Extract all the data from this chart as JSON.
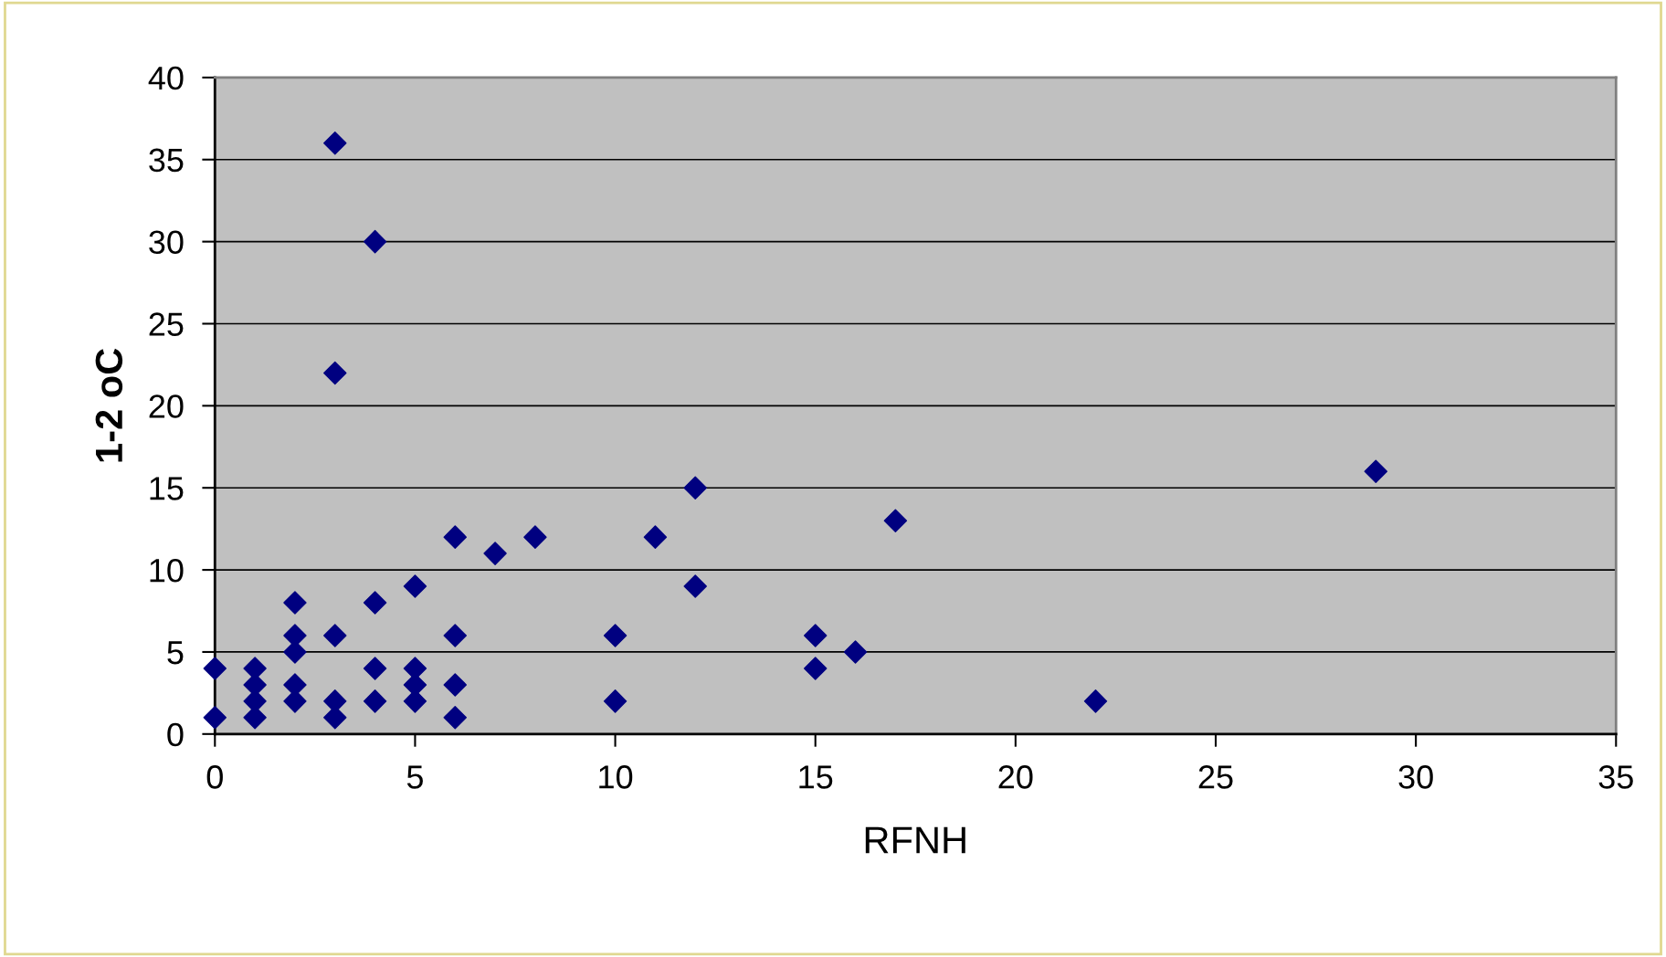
{
  "chart_data": {
    "type": "scatter",
    "xlabel": "RFNH",
    "ylabel": "1-2 oC",
    "series": [
      {
        "color": "#000080",
        "x": [
          0,
          0,
          1,
          1,
          1,
          1,
          2,
          2,
          2,
          2,
          2,
          3,
          3,
          3,
          3,
          3,
          4,
          4,
          4,
          4,
          5,
          5,
          5,
          5,
          6,
          6,
          6,
          6,
          7,
          8,
          10,
          10,
          11,
          12,
          12,
          15,
          15,
          16,
          17,
          22,
          29
        ],
        "values": [
          4,
          1,
          4,
          3,
          2,
          1,
          8,
          6,
          5,
          3,
          2,
          36,
          22,
          6,
          2,
          1,
          30,
          8,
          4,
          2,
          9,
          4,
          3,
          2,
          12,
          6,
          3,
          1,
          11,
          12,
          6,
          2,
          12,
          15,
          9,
          6,
          4,
          5,
          13,
          2,
          16
        ]
      }
    ],
    "marker": "diamond",
    "xlim": [
      0,
      35
    ],
    "ylim": [
      0,
      40
    ],
    "xticks": [
      0,
      5,
      10,
      15,
      20,
      25,
      30,
      35
    ],
    "yticks": [
      0,
      5,
      10,
      15,
      20,
      25,
      30,
      35,
      40
    ],
    "grid": "y",
    "legend": false
  }
}
